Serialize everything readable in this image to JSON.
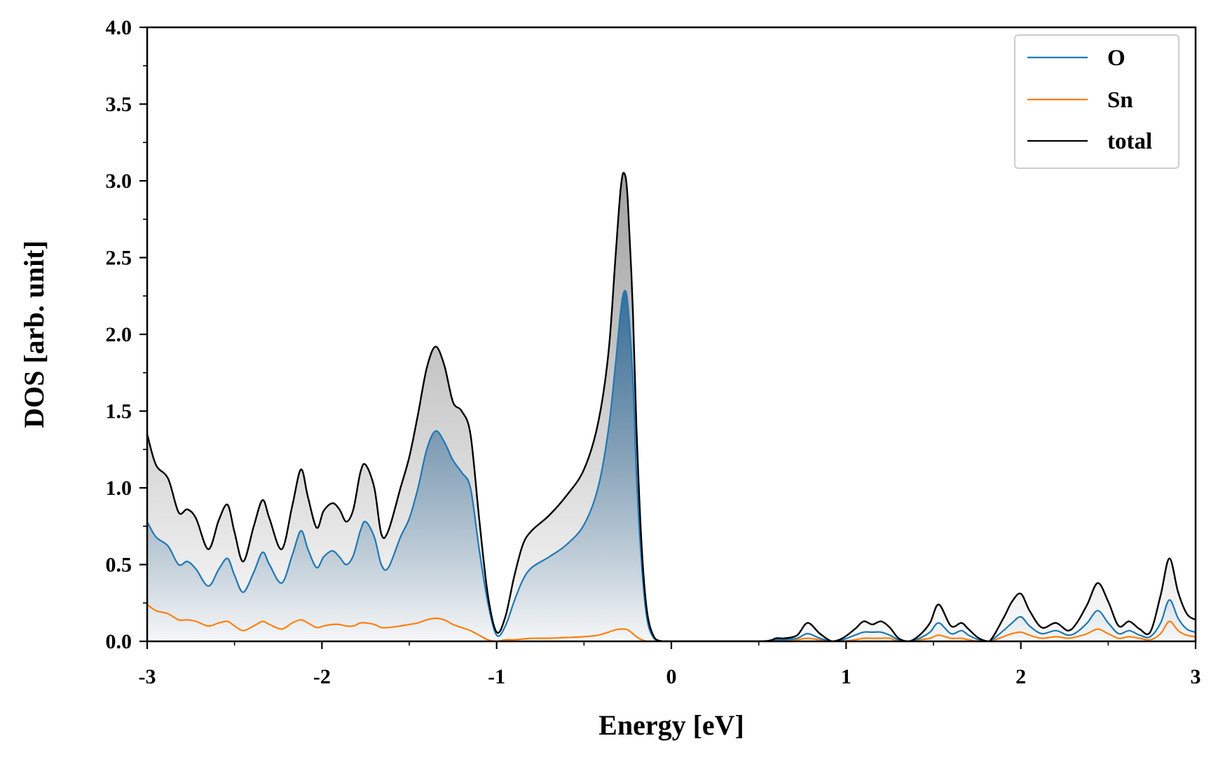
{
  "chart_data": {
    "type": "line",
    "xlabel": "Energy [eV]",
    "ylabel": "DOS [arb. unit]",
    "xlim": [
      -3,
      3
    ],
    "ylim": [
      0,
      4
    ],
    "xticks": [
      -3,
      -2,
      -1,
      0,
      1,
      2,
      3
    ],
    "xtick_labels": [
      "-3",
      "-2",
      "-1",
      "0",
      "1",
      "2",
      "3"
    ],
    "yticks": [
      0,
      0.5,
      1,
      1.5,
      2,
      2.5,
      3,
      3.5,
      4
    ],
    "ytick_labels": [
      "0.0",
      "0.5",
      "1.0",
      "1.5",
      "2.0",
      "2.5",
      "3.0",
      "3.5",
      "4.0"
    ],
    "legend_position": "top-right",
    "grid": false,
    "colors": {
      "O": "#1f77b4",
      "Sn": "#ff7f0e",
      "total": "#000000"
    },
    "series": [
      {
        "name": "O",
        "x": [
          -3.0,
          -2.95,
          -2.88,
          -2.82,
          -2.77,
          -2.72,
          -2.65,
          -2.59,
          -2.54,
          -2.5,
          -2.45,
          -2.39,
          -2.34,
          -2.3,
          -2.23,
          -2.17,
          -2.12,
          -2.08,
          -2.03,
          -1.99,
          -1.94,
          -1.9,
          -1.86,
          -1.82,
          -1.78,
          -1.75,
          -1.7,
          -1.66,
          -1.62,
          -1.55,
          -1.5,
          -1.45,
          -1.4,
          -1.35,
          -1.3,
          -1.25,
          -1.2,
          -1.15,
          -1.1,
          -1.05,
          -1.0,
          -0.95,
          -0.9,
          -0.85,
          -0.8,
          -0.7,
          -0.6,
          -0.5,
          -0.42,
          -0.36,
          -0.32,
          -0.29,
          -0.27,
          -0.25,
          -0.22,
          -0.2,
          -0.17,
          -0.14,
          -0.1,
          -0.05,
          0.0,
          0.5,
          0.6,
          0.65,
          0.72,
          0.78,
          0.85,
          0.92,
          0.98,
          1.05,
          1.1,
          1.15,
          1.2,
          1.25,
          1.3,
          1.36,
          1.42,
          1.48,
          1.53,
          1.6,
          1.66,
          1.7,
          1.76,
          1.82,
          1.9,
          1.95,
          2.0,
          2.05,
          2.12,
          2.2,
          2.27,
          2.32,
          2.38,
          2.44,
          2.5,
          2.56,
          2.62,
          2.68,
          2.74,
          2.8,
          2.85,
          2.9,
          2.95,
          3.0
        ],
        "y": [
          0.78,
          0.68,
          0.62,
          0.5,
          0.52,
          0.47,
          0.36,
          0.47,
          0.54,
          0.43,
          0.32,
          0.45,
          0.58,
          0.5,
          0.38,
          0.56,
          0.72,
          0.6,
          0.48,
          0.55,
          0.59,
          0.55,
          0.5,
          0.56,
          0.72,
          0.78,
          0.68,
          0.5,
          0.48,
          0.68,
          0.8,
          1.0,
          1.25,
          1.37,
          1.3,
          1.18,
          1.1,
          1.0,
          0.6,
          0.25,
          0.04,
          0.1,
          0.26,
          0.4,
          0.48,
          0.55,
          0.63,
          0.76,
          1.0,
          1.38,
          1.8,
          2.15,
          2.28,
          2.2,
          1.7,
          1.1,
          0.5,
          0.15,
          0.02,
          0.0,
          0.0,
          0.0,
          0.01,
          0.01,
          0.02,
          0.05,
          0.02,
          0.0,
          0.01,
          0.04,
          0.06,
          0.06,
          0.06,
          0.04,
          0.01,
          0.0,
          0.02,
          0.06,
          0.12,
          0.05,
          0.07,
          0.04,
          0.01,
          0.0,
          0.07,
          0.12,
          0.16,
          0.1,
          0.05,
          0.07,
          0.04,
          0.06,
          0.12,
          0.2,
          0.12,
          0.05,
          0.07,
          0.04,
          0.03,
          0.12,
          0.27,
          0.15,
          0.08,
          0.06
        ]
      },
      {
        "name": "Sn",
        "x": [
          -3.0,
          -2.95,
          -2.88,
          -2.82,
          -2.77,
          -2.72,
          -2.65,
          -2.59,
          -2.54,
          -2.5,
          -2.45,
          -2.39,
          -2.34,
          -2.3,
          -2.23,
          -2.17,
          -2.12,
          -2.08,
          -2.03,
          -1.99,
          -1.94,
          -1.9,
          -1.86,
          -1.82,
          -1.78,
          -1.75,
          -1.7,
          -1.66,
          -1.62,
          -1.55,
          -1.5,
          -1.45,
          -1.4,
          -1.35,
          -1.3,
          -1.25,
          -1.2,
          -1.15,
          -1.1,
          -1.05,
          -1.0,
          -0.95,
          -0.9,
          -0.85,
          -0.8,
          -0.7,
          -0.6,
          -0.5,
          -0.42,
          -0.36,
          -0.32,
          -0.29,
          -0.27,
          -0.25,
          -0.22,
          -0.2,
          -0.17,
          -0.14,
          -0.1,
          -0.05,
          0.0,
          0.5,
          0.6,
          0.65,
          0.72,
          0.78,
          0.85,
          0.92,
          0.98,
          1.05,
          1.1,
          1.15,
          1.2,
          1.25,
          1.3,
          1.36,
          1.42,
          1.48,
          1.53,
          1.6,
          1.66,
          1.7,
          1.76,
          1.82,
          1.9,
          1.95,
          2.0,
          2.05,
          2.12,
          2.2,
          2.27,
          2.32,
          2.38,
          2.44,
          2.5,
          2.56,
          2.62,
          2.68,
          2.74,
          2.8,
          2.85,
          2.9,
          2.95,
          3.0
        ],
        "y": [
          0.24,
          0.2,
          0.18,
          0.14,
          0.14,
          0.13,
          0.1,
          0.12,
          0.13,
          0.1,
          0.07,
          0.1,
          0.13,
          0.11,
          0.08,
          0.12,
          0.14,
          0.12,
          0.09,
          0.1,
          0.11,
          0.11,
          0.1,
          0.1,
          0.12,
          0.12,
          0.11,
          0.09,
          0.09,
          0.1,
          0.11,
          0.12,
          0.14,
          0.15,
          0.14,
          0.11,
          0.09,
          0.07,
          0.04,
          0.01,
          0.0,
          0.01,
          0.01,
          0.015,
          0.02,
          0.02,
          0.025,
          0.03,
          0.04,
          0.06,
          0.075,
          0.08,
          0.08,
          0.075,
          0.05,
          0.03,
          0.01,
          0.0,
          0.0,
          0.0,
          0.0,
          0.0,
          0.0,
          0.0,
          0.01,
          0.02,
          0.01,
          0.0,
          0.0,
          0.01,
          0.02,
          0.02,
          0.02,
          0.02,
          0.0,
          0.0,
          0.01,
          0.02,
          0.04,
          0.02,
          0.02,
          0.01,
          0.0,
          0.0,
          0.03,
          0.05,
          0.06,
          0.04,
          0.02,
          0.03,
          0.02,
          0.03,
          0.05,
          0.08,
          0.05,
          0.02,
          0.03,
          0.02,
          0.01,
          0.05,
          0.13,
          0.07,
          0.04,
          0.03
        ]
      },
      {
        "name": "total",
        "x": [
          -3.0,
          -2.95,
          -2.88,
          -2.82,
          -2.77,
          -2.72,
          -2.65,
          -2.59,
          -2.54,
          -2.5,
          -2.45,
          -2.39,
          -2.34,
          -2.3,
          -2.23,
          -2.17,
          -2.12,
          -2.08,
          -2.03,
          -1.99,
          -1.94,
          -1.9,
          -1.86,
          -1.82,
          -1.78,
          -1.75,
          -1.7,
          -1.66,
          -1.62,
          -1.55,
          -1.5,
          -1.45,
          -1.4,
          -1.35,
          -1.3,
          -1.25,
          -1.2,
          -1.15,
          -1.1,
          -1.05,
          -1.0,
          -0.95,
          -0.9,
          -0.85,
          -0.8,
          -0.7,
          -0.6,
          -0.5,
          -0.42,
          -0.36,
          -0.32,
          -0.29,
          -0.27,
          -0.25,
          -0.22,
          -0.2,
          -0.17,
          -0.14,
          -0.1,
          -0.05,
          0.0,
          0.5,
          0.6,
          0.65,
          0.72,
          0.78,
          0.85,
          0.92,
          0.98,
          1.05,
          1.1,
          1.15,
          1.2,
          1.25,
          1.3,
          1.36,
          1.42,
          1.48,
          1.53,
          1.6,
          1.66,
          1.7,
          1.76,
          1.82,
          1.9,
          1.95,
          2.0,
          2.05,
          2.12,
          2.2,
          2.27,
          2.32,
          2.38,
          2.44,
          2.5,
          2.56,
          2.62,
          2.68,
          2.74,
          2.8,
          2.85,
          2.9,
          2.95,
          3.0
        ],
        "y": [
          1.35,
          1.15,
          1.06,
          0.84,
          0.86,
          0.8,
          0.6,
          0.79,
          0.89,
          0.71,
          0.52,
          0.75,
          0.92,
          0.8,
          0.6,
          0.88,
          1.12,
          0.94,
          0.74,
          0.85,
          0.9,
          0.86,
          0.78,
          0.86,
          1.1,
          1.15,
          1.0,
          0.7,
          0.72,
          1.0,
          1.2,
          1.48,
          1.78,
          1.92,
          1.8,
          1.56,
          1.5,
          1.35,
          0.8,
          0.3,
          0.06,
          0.16,
          0.42,
          0.63,
          0.72,
          0.82,
          0.95,
          1.12,
          1.42,
          1.88,
          2.5,
          2.95,
          3.05,
          2.88,
          2.15,
          1.4,
          0.62,
          0.2,
          0.03,
          0.0,
          0.0,
          0.0,
          0.02,
          0.02,
          0.04,
          0.12,
          0.05,
          0.0,
          0.02,
          0.08,
          0.13,
          0.11,
          0.13,
          0.09,
          0.02,
          0.0,
          0.04,
          0.12,
          0.24,
          0.1,
          0.12,
          0.08,
          0.02,
          0.0,
          0.15,
          0.26,
          0.31,
          0.2,
          0.09,
          0.12,
          0.07,
          0.12,
          0.24,
          0.38,
          0.26,
          0.1,
          0.13,
          0.08,
          0.06,
          0.3,
          0.54,
          0.32,
          0.18,
          0.14
        ]
      }
    ]
  }
}
